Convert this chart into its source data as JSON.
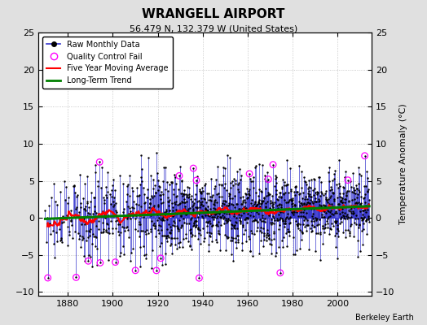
{
  "title": "WRANGELL AIRPORT",
  "subtitle": "56.479 N, 132.379 W (United States)",
  "ylabel_right": "Temperature Anomaly (°C)",
  "attribution": "Berkeley Earth",
  "ylim": [
    -10.5,
    25
  ],
  "yticks": [
    -10,
    -5,
    0,
    5,
    10,
    15,
    20,
    25
  ],
  "xlim": [
    1867,
    2015
  ],
  "xticks": [
    1880,
    1900,
    1920,
    1940,
    1960,
    1980,
    2000
  ],
  "year_start": 1870,
  "year_end": 2013,
  "seed": 42,
  "bg_color": "#e0e0e0",
  "plot_bg_color": "#ffffff",
  "raw_line_color": "#3333cc",
  "raw_dot_color": "black",
  "qc_fail_color": "magenta",
  "moving_avg_color": "red",
  "trend_color": "green",
  "legend_loc": "upper left"
}
